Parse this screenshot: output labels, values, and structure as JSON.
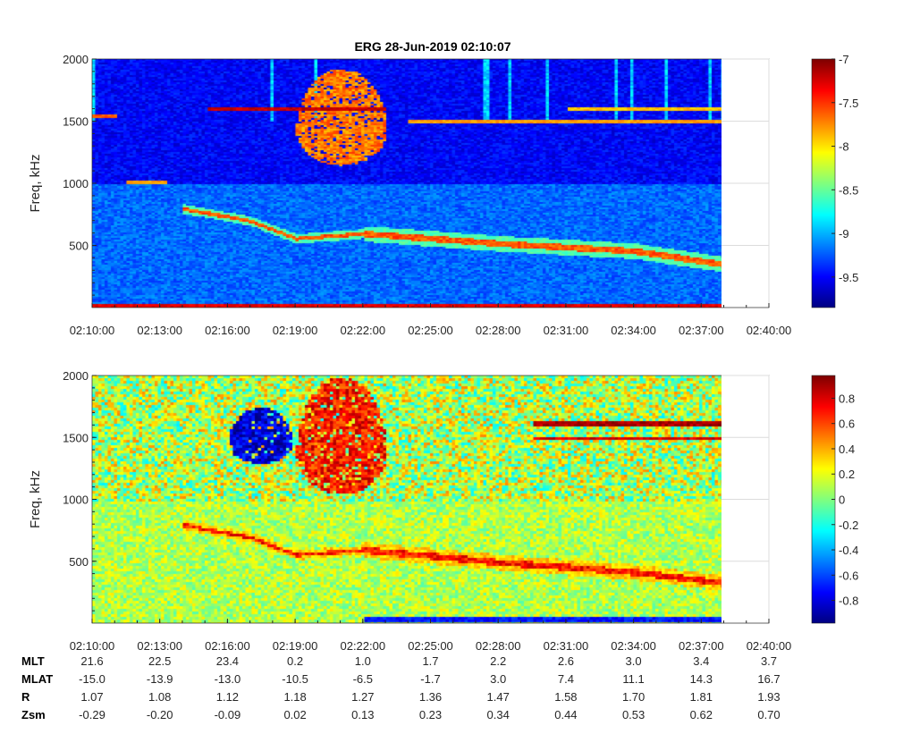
{
  "chart_data": {
    "type": "heatmap",
    "title": "ERG  28-Jun-2019 02:10:07",
    "x_ticks": [
      "02:10:00",
      "02:13:00",
      "02:16:00",
      "02:19:00",
      "02:22:00",
      "02:25:00",
      "02:28:00",
      "02:31:00",
      "02:34:00",
      "02:37:00",
      "02:40:00"
    ],
    "x_range_minutes": [
      0,
      30
    ],
    "data_end_minutes": 28,
    "panels": [
      {
        "name": "log-power-spectrogram",
        "ylabel": "Freq, kHz",
        "ylim": [
          0,
          2000
        ],
        "y_ticks": [
          "500",
          "1000",
          "1500",
          "2000"
        ],
        "y_tick_values": [
          500,
          1000,
          1500,
          2000
        ],
        "colorbar": {
          "range": [
            -9.85,
            -7
          ],
          "ticks": [
            "-7",
            "-7.5",
            "-8",
            "-8.5",
            "-9",
            "-9.5"
          ],
          "tick_values": [
            -7,
            -7.5,
            -8,
            -8.5,
            -9,
            -9.5
          ],
          "colormap": "jet"
        },
        "background_level": -9.3,
        "features": [
          {
            "kind": "track",
            "points_min_khz": [
              [
                4,
                800
              ],
              [
                7,
                700
              ],
              [
                9,
                560
              ],
              [
                12,
                600
              ],
              [
                18,
                520
              ],
              [
                24,
                460
              ],
              [
                28,
                350
              ]
            ],
            "level": -7.6
          },
          {
            "kind": "blob",
            "t_range": [
              9,
              13
            ],
            "f_range": [
              1150,
              1700
            ],
            "level": -7.7
          },
          {
            "kind": "line",
            "t_range": [
              5,
              13
            ],
            "freq": 1600,
            "level": -7.2
          },
          {
            "kind": "line",
            "t_range": [
              14,
              28
            ],
            "freq": 1500,
            "level": -7.8
          },
          {
            "kind": "line",
            "t_range": [
              21,
              28
            ],
            "freq": 1600,
            "level": -7.9
          },
          {
            "kind": "line",
            "t_range": [
              0,
              1
            ],
            "freq": 1550,
            "level": -7.6
          },
          {
            "kind": "line",
            "t_range": [
              1.5,
              3.3
            ],
            "freq": 1020,
            "level": -7.8
          },
          {
            "kind": "line",
            "t_range": [
              0,
              28
            ],
            "freq": 20,
            "level": -7.3
          }
        ]
      },
      {
        "name": "normalized-spectrogram",
        "ylabel": "Freq, kHz",
        "ylim": [
          0,
          2000
        ],
        "y_ticks": [
          "500",
          "1000",
          "1500",
          "2000"
        ],
        "y_tick_values": [
          500,
          1000,
          1500,
          2000
        ],
        "colorbar": {
          "range": [
            -0.98,
            0.98
          ],
          "ticks": [
            "0.8",
            "0.6",
            "0.4",
            "0.2",
            "0",
            "-0.2",
            "-0.4",
            "-0.6",
            "-0.8"
          ],
          "tick_values": [
            0.8,
            0.6,
            0.4,
            0.2,
            0,
            -0.2,
            -0.4,
            -0.6,
            -0.8
          ],
          "colormap": "jet"
        },
        "background_level": 0.1,
        "features": [
          {
            "kind": "track",
            "points_min_khz": [
              [
                4,
                800
              ],
              [
                7,
                700
              ],
              [
                9,
                560
              ],
              [
                12,
                600
              ],
              [
                18,
                500
              ],
              [
                24,
                420
              ],
              [
                28,
                330
              ]
            ],
            "level": 0.7
          },
          {
            "kind": "blob",
            "t_range": [
              9,
              13
            ],
            "f_range": [
              1050,
              1720
            ],
            "level": 0.7
          },
          {
            "kind": "blob",
            "t_range": [
              6,
              8.8
            ],
            "f_range": [
              1300,
              1620
            ],
            "level": -0.8
          },
          {
            "kind": "line",
            "t_range": [
              19.5,
              28
            ],
            "freq": 1620,
            "level": 0.9
          },
          {
            "kind": "line",
            "t_range": [
              19.5,
              28
            ],
            "freq": 1500,
            "level": 0.8
          },
          {
            "kind": "line",
            "t_range": [
              12,
              28
            ],
            "freq": 40,
            "level": -0.7
          }
        ]
      }
    ],
    "ephemeris_table": {
      "rows": [
        {
          "label": "MLT",
          "values": [
            "21.6",
            "22.5",
            "23.4",
            "0.2",
            "1.0",
            "1.7",
            "2.2",
            "2.6",
            "3.0",
            "3.4",
            "3.7"
          ]
        },
        {
          "label": "MLAT",
          "values": [
            "-15.0",
            "-13.9",
            "-13.0",
            "-10.5",
            "-6.5",
            "-1.7",
            "3.0",
            "7.4",
            "11.1",
            "14.3",
            "16.7"
          ]
        },
        {
          "label": "R",
          "values": [
            "1.07",
            "1.08",
            "1.12",
            "1.18",
            "1.27",
            "1.36",
            "1.47",
            "1.58",
            "1.70",
            "1.81",
            "1.93"
          ]
        },
        {
          "label": "Zsm",
          "values": [
            "-0.29",
            "-0.20",
            "-0.09",
            "0.02",
            "0.13",
            "0.23",
            "0.34",
            "0.44",
            "0.53",
            "0.62",
            "0.70"
          ]
        }
      ]
    }
  }
}
